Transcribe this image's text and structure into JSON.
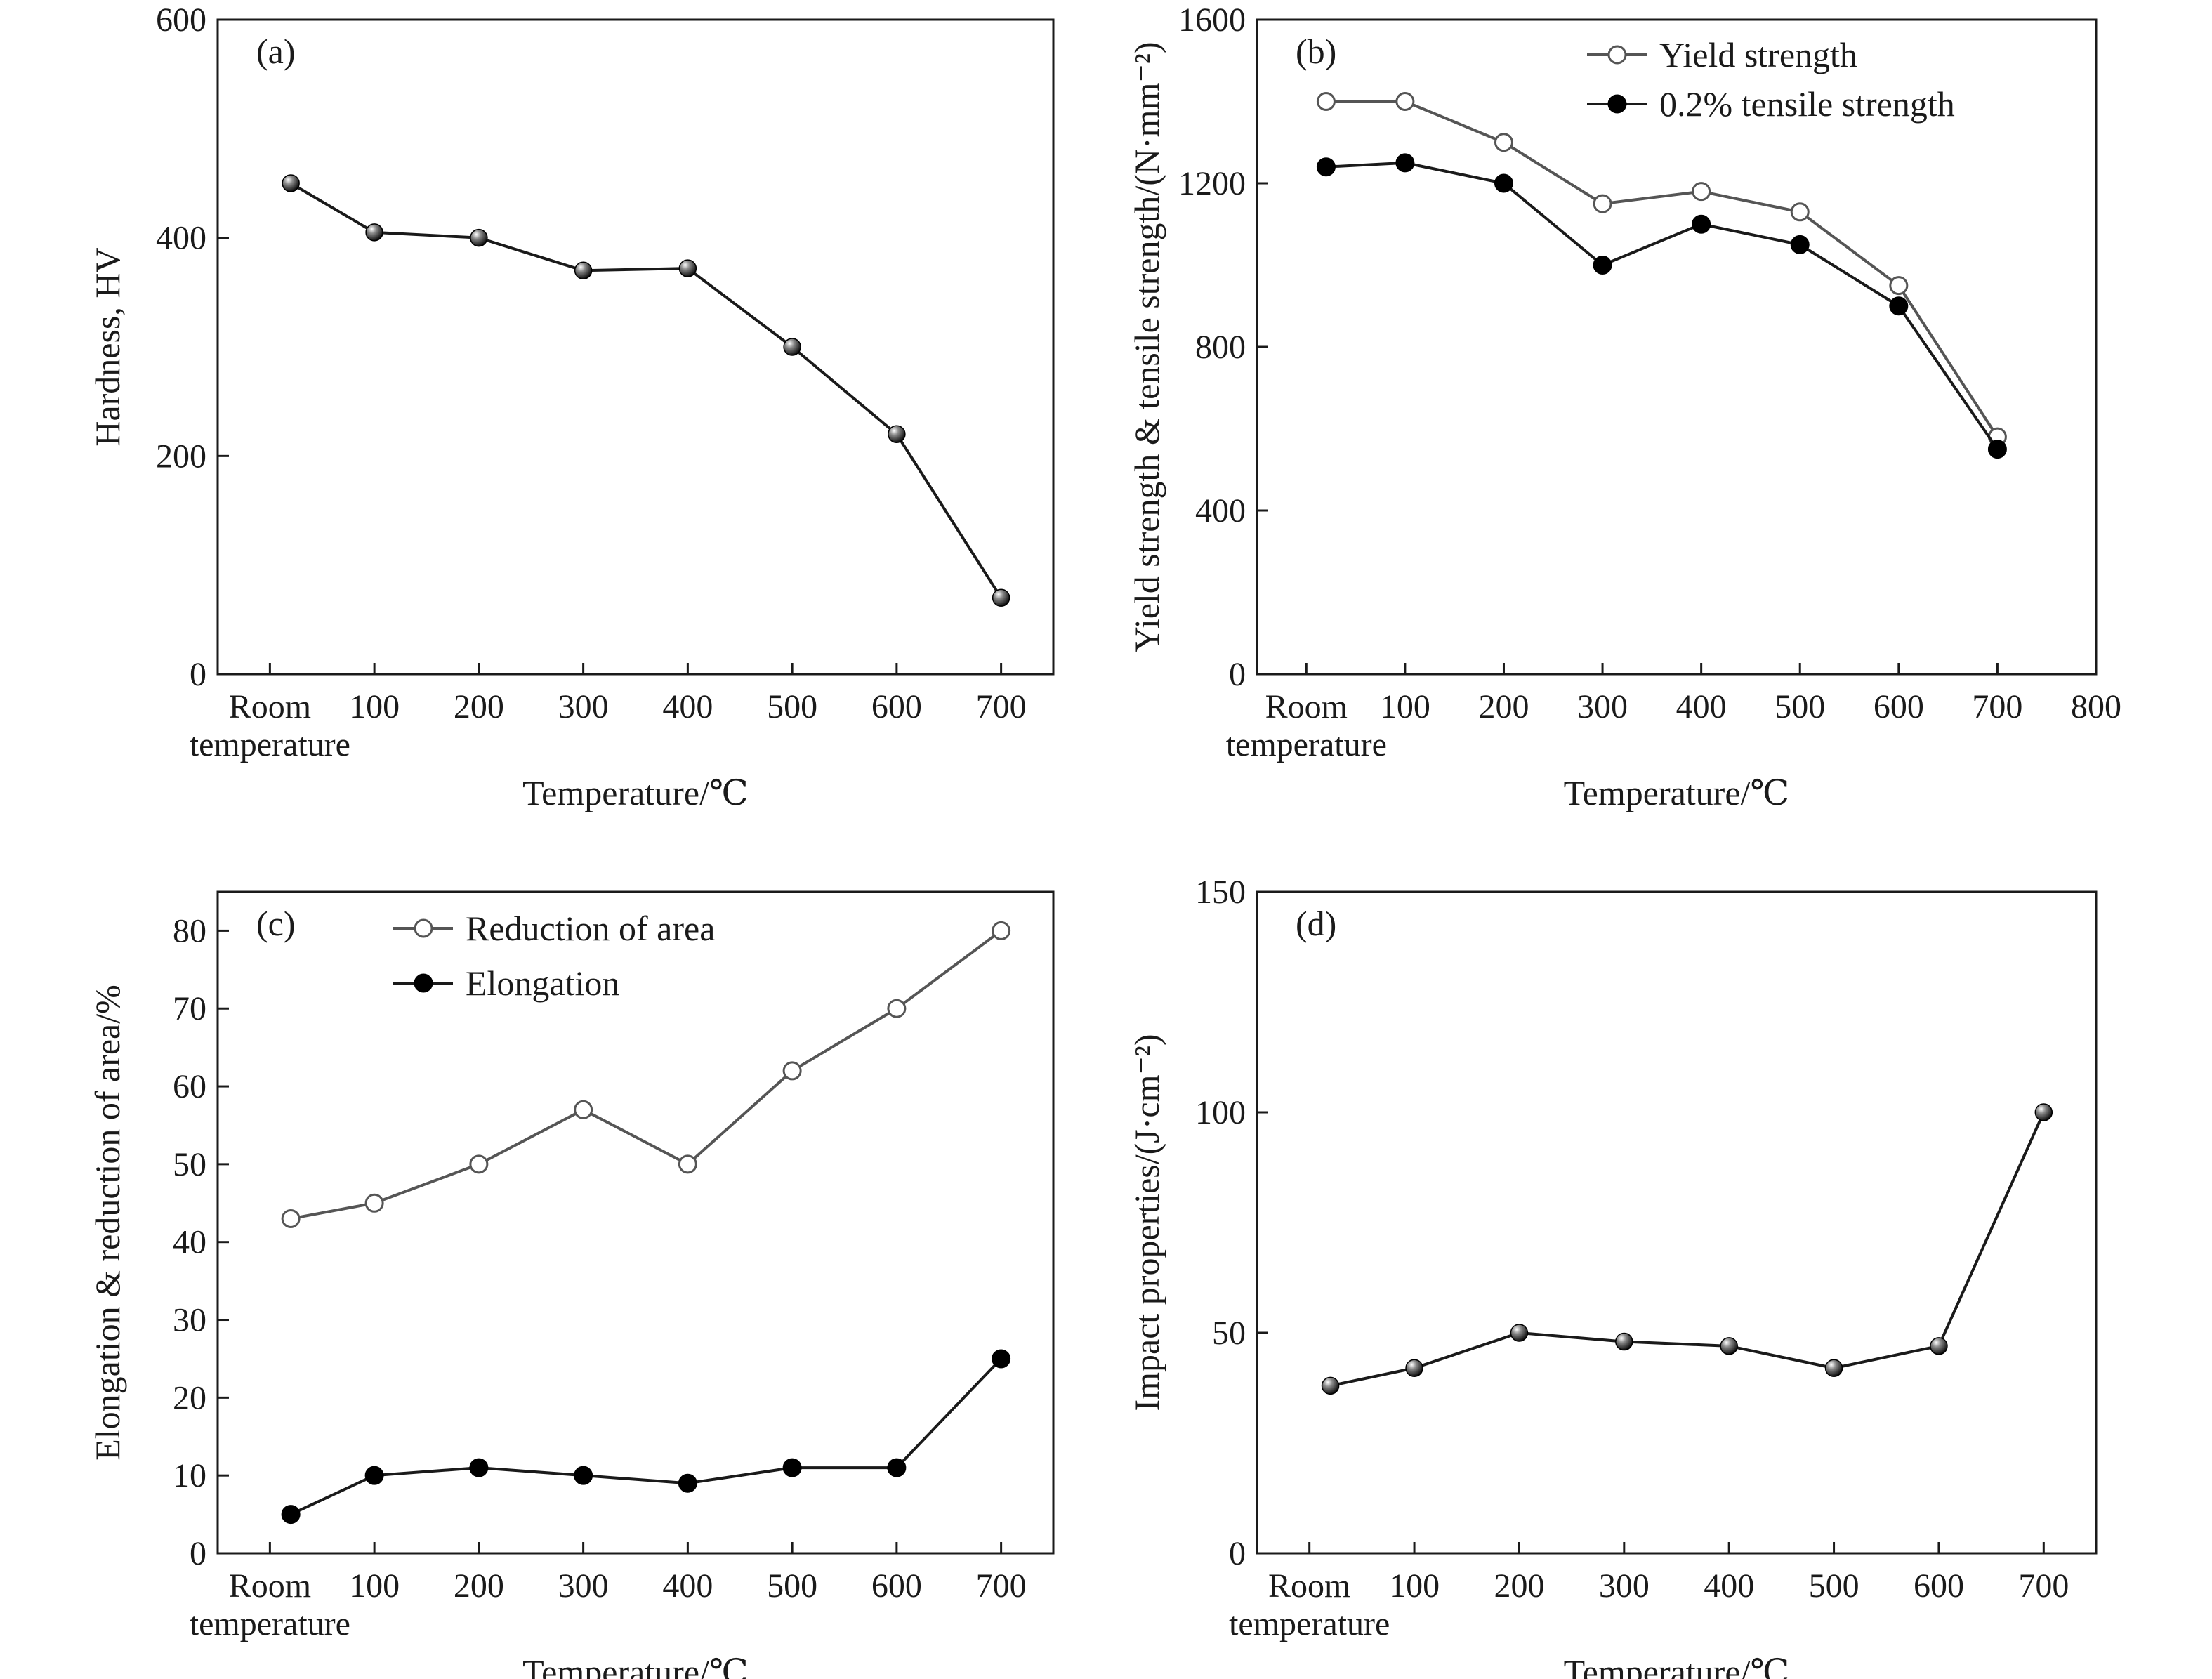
{
  "chart_data": [
    {
      "panel": "(a)",
      "type": "line",
      "xlabel": "Temperature/℃",
      "ylabel": "Hardness, HV",
      "ylim": [
        0,
        600
      ],
      "yticks": [
        0,
        200,
        400,
        600
      ],
      "xlim": [
        -50,
        750
      ],
      "xticks": [
        {
          "value": 0,
          "label": "Room",
          "label2": "temperature"
        },
        {
          "value": 100,
          "label": "100"
        },
        {
          "value": 200,
          "label": "200"
        },
        {
          "value": 300,
          "label": "300"
        },
        {
          "value": 400,
          "label": "400"
        },
        {
          "value": 500,
          "label": "500"
        },
        {
          "value": 600,
          "label": "600"
        },
        {
          "value": 700,
          "label": "700"
        }
      ],
      "legend": null,
      "series": [
        {
          "name": "",
          "marker": "ball",
          "color": "#1a1a1a",
          "x": [
            20,
            100,
            200,
            300,
            400,
            500,
            600,
            700
          ],
          "y": [
            450,
            405,
            400,
            370,
            372,
            300,
            220,
            70
          ]
        }
      ]
    },
    {
      "panel": "(b)",
      "type": "line",
      "xlabel": "Temperature/℃",
      "ylabel": "Yield strength & tensile strength/(N·mm⁻²)",
      "ylim": [
        0,
        1600
      ],
      "yticks": [
        0,
        400,
        800,
        1200,
        1600
      ],
      "xlim": [
        -50,
        800
      ],
      "xticks": [
        {
          "value": 0,
          "label": "Room",
          "label2": "temperature"
        },
        {
          "value": 100,
          "label": "100"
        },
        {
          "value": 200,
          "label": "200"
        },
        {
          "value": 300,
          "label": "300"
        },
        {
          "value": 400,
          "label": "400"
        },
        {
          "value": 500,
          "label": "500"
        },
        {
          "value": 600,
          "label": "600"
        },
        {
          "value": 700,
          "label": "700"
        },
        {
          "value": 800,
          "label": "800"
        }
      ],
      "legend": "top-right",
      "series": [
        {
          "name": "Yield strength",
          "marker": "open",
          "color": "#555555",
          "x": [
            20,
            100,
            200,
            300,
            400,
            500,
            600,
            700
          ],
          "y": [
            1400,
            1400,
            1300,
            1150,
            1180,
            1130,
            950,
            580
          ]
        },
        {
          "name": "0.2% tensile strength",
          "marker": "filled",
          "color": "#1a1a1a",
          "x": [
            20,
            100,
            200,
            300,
            400,
            500,
            600,
            700
          ],
          "y": [
            1240,
            1250,
            1200,
            1000,
            1100,
            1050,
            900,
            550
          ]
        }
      ]
    },
    {
      "panel": "(c)",
      "type": "line",
      "xlabel": "Temperature/℃",
      "ylabel": "Elongation & reduction of area/%",
      "ylim": [
        0,
        85
      ],
      "yticks": [
        0,
        10,
        20,
        30,
        40,
        50,
        60,
        70,
        80
      ],
      "xlim": [
        -50,
        750
      ],
      "xticks": [
        {
          "value": 0,
          "label": "Room",
          "label2": "temperature"
        },
        {
          "value": 100,
          "label": "100"
        },
        {
          "value": 200,
          "label": "200"
        },
        {
          "value": 300,
          "label": "300"
        },
        {
          "value": 400,
          "label": "400"
        },
        {
          "value": 500,
          "label": "500"
        },
        {
          "value": 600,
          "label": "600"
        },
        {
          "value": 700,
          "label": "700"
        }
      ],
      "legend": "top-center",
      "series": [
        {
          "name": "Reduction of area",
          "marker": "open",
          "color": "#555555",
          "x": [
            20,
            100,
            200,
            300,
            400,
            500,
            600,
            700
          ],
          "y": [
            43,
            45,
            50,
            57,
            50,
            62,
            70,
            80
          ]
        },
        {
          "name": "Elongation",
          "marker": "filled",
          "color": "#1a1a1a",
          "x": [
            20,
            100,
            200,
            300,
            400,
            500,
            600,
            700
          ],
          "y": [
            5,
            10,
            11,
            10,
            9,
            11,
            11,
            25
          ]
        }
      ]
    },
    {
      "panel": "(d)",
      "type": "line",
      "xlabel": "Temperature/℃",
      "ylabel": "Impact properties/(J·cm⁻²)",
      "ylim": [
        0,
        150
      ],
      "yticks": [
        0,
        50,
        100,
        150
      ],
      "xlim": [
        -50,
        750
      ],
      "xticks": [
        {
          "value": 0,
          "label": "Room",
          "label2": "temperature"
        },
        {
          "value": 100,
          "label": "100"
        },
        {
          "value": 200,
          "label": "200"
        },
        {
          "value": 300,
          "label": "300"
        },
        {
          "value": 400,
          "label": "400"
        },
        {
          "value": 500,
          "label": "500"
        },
        {
          "value": 600,
          "label": "600"
        },
        {
          "value": 700,
          "label": "700"
        }
      ],
      "legend": null,
      "series": [
        {
          "name": "",
          "marker": "ball",
          "color": "#1a1a1a",
          "x": [
            20,
            100,
            200,
            300,
            400,
            500,
            600,
            700
          ],
          "y": [
            38,
            42,
            50,
            48,
            47,
            42,
            47,
            100
          ]
        }
      ]
    }
  ]
}
